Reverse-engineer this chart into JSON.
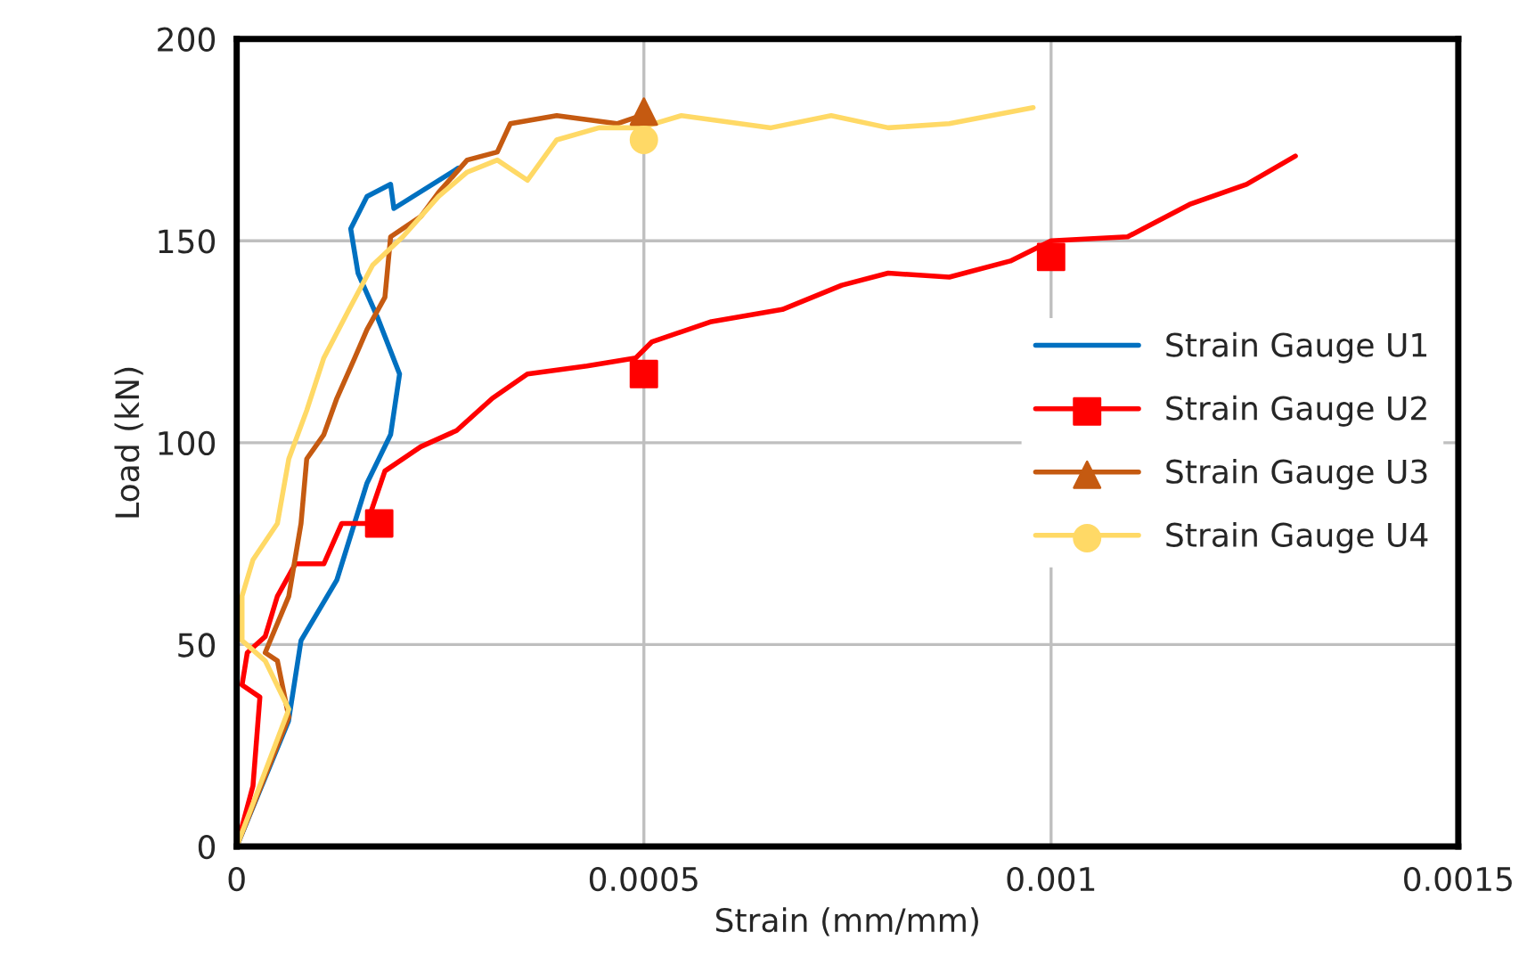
{
  "chart_data": {
    "type": "line",
    "xlabel": "Strain (mm/mm)",
    "ylabel": "Load (kN)",
    "xlim": [
      0,
      0.0015
    ],
    "xticks": [
      0,
      0.0005,
      0.001,
      0.0015
    ],
    "ylim": [
      0,
      200
    ],
    "yticks": [
      0,
      50,
      100,
      150,
      200
    ],
    "grid": true,
    "legend": "right",
    "line_style": "solid",
    "series": [
      {
        "name": "Strain Gauge U1",
        "color": "#0070c0",
        "x": [
          0,
          6.36e-05,
          7.9e-05,
          0.000123,
          0.00016,
          0.000189,
          0.0002,
          0.000173,
          0.000149,
          0.00014,
          0.00016,
          0.000189,
          0.000193,
          0.000272
        ],
        "values": [
          0,
          31,
          51,
          66,
          90,
          102,
          117,
          131,
          142,
          153,
          161,
          164,
          158,
          168
        ]
      },
      {
        "name": "Strain Gauge U2",
        "color": "#ff0000",
        "x": [
          0,
          2e-05,
          2.85e-05,
          6.6e-06,
          1.3e-05,
          3.5e-05,
          5e-05,
          7.2e-05,
          0.000107,
          0.000129,
          0.00016,
          0.000182,
          0.000226,
          0.00027,
          0.000314,
          0.000357,
          0.00043,
          0.00049,
          0.00051,
          0.000583,
          0.00067,
          0.000743,
          0.0008,
          0.000875,
          0.00095,
          0.001,
          0.001094,
          0.00117,
          0.00124,
          0.0013
        ],
        "values": [
          0,
          15,
          37,
          40,
          48,
          52,
          62,
          70,
          70,
          80,
          80,
          93,
          99,
          103,
          111,
          117,
          119,
          121,
          125,
          130,
          133,
          139,
          142,
          141,
          145,
          150,
          151,
          159,
          164,
          171
        ]
      },
      {
        "type": "scatter",
        "marker": "square",
        "color": "#ff0000",
        "x": [
          0.000175,
          0.0005,
          0.001
        ],
        "values": [
          80,
          117,
          146
        ]
      },
      {
        "name": "Strain Gauge U3",
        "color": "#c55a11",
        "x": [
          0,
          6.4e-05,
          5e-05,
          3.5e-05,
          6.4e-05,
          7.9e-05,
          8.6e-05,
          0.000107,
          0.000123,
          0.000145,
          0.00016,
          0.000182,
          0.000189,
          0.000226,
          0.000248,
          0.000283,
          0.00032,
          0.000336,
          0.000393,
          0.000467,
          0.000496
        ],
        "values": [
          0,
          32,
          46,
          48,
          62,
          80,
          96,
          102,
          111,
          121,
          128,
          136,
          151,
          156,
          162,
          170,
          172,
          179,
          181,
          179,
          181
        ]
      },
      {
        "type": "scatter",
        "marker": "triangle",
        "color": "#c55a11",
        "x": [
          0.0005
        ],
        "values": [
          182
        ]
      },
      {
        "name": "Strain Gauge U4",
        "color": "#ffd966",
        "x": [
          0,
          6.4e-05,
          3.5e-05,
          6.6e-06,
          6.6e-06,
          2e-05,
          5e-05,
          6.4e-05,
          8.6e-05,
          0.000107,
          0.000138,
          0.000167,
          0.000204,
          0.000248,
          0.000283,
          0.00032,
          0.000357,
          0.000393,
          0.000445,
          0.000496,
          0.000546,
          0.000656,
          0.00073,
          0.0008,
          0.000875,
          0.000978
        ],
        "values": [
          0,
          34,
          46,
          51,
          62,
          71,
          80,
          96,
          108,
          121,
          133,
          144,
          151,
          161,
          167,
          170,
          165,
          175,
          178,
          178,
          181,
          178,
          181,
          178,
          179,
          183
        ]
      },
      {
        "type": "scatter",
        "marker": "circle",
        "color": "#ffd966",
        "x": [
          0.0005
        ],
        "values": [
          175
        ]
      }
    ]
  }
}
